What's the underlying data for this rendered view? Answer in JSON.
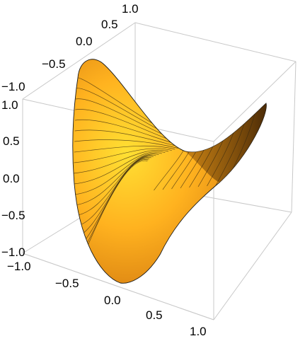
{
  "chart_data": {
    "type": "surface3d",
    "title": "",
    "function": "z = x^2 - y^2 (saddle)",
    "domain": "unit disk",
    "x_ticks": [
      "−1.0",
      "−0.5",
      "0.0",
      "0.5",
      "1.0"
    ],
    "y_ticks": [
      "−1.0",
      "−0.5",
      "0.0",
      "0.5",
      "1.0"
    ],
    "z_ticks": [
      "−1.0",
      "−0.5",
      "0.0",
      "0.5",
      "1.0"
    ],
    "xlim": [
      -1,
      1
    ],
    "ylim": [
      -1,
      1
    ],
    "zlim": [
      -1,
      1
    ],
    "contour_levels": 20,
    "colors": {
      "light": "#ffe033",
      "mid": "#f7a21a",
      "dark": "#5a3208",
      "box": "#c8c8c8"
    }
  }
}
